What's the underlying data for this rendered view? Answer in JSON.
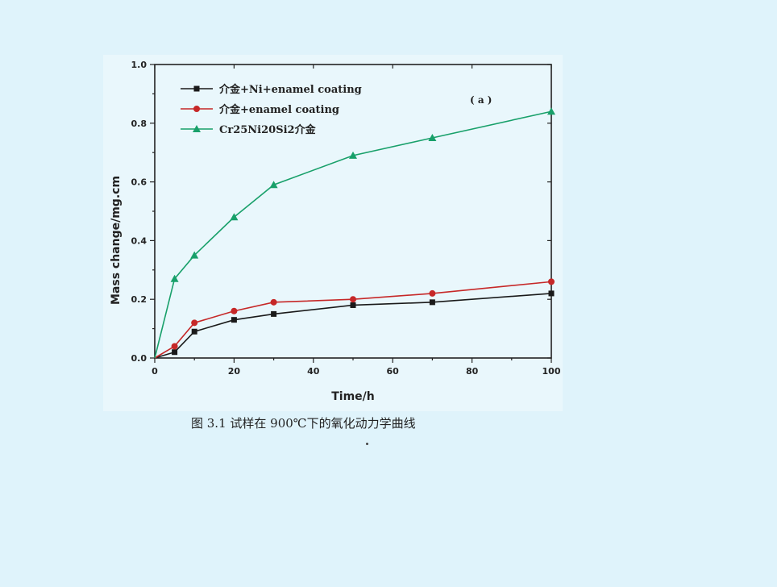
{
  "caption": "图 3.1  试样在 900℃下的氧化动力学曲线",
  "chart_data": {
    "type": "line",
    "panel_label": "( a )",
    "xlabel": "Time/h",
    "ylabel": "Mass change/mg.cm",
    "xlim": [
      0,
      100
    ],
    "ylim": [
      0.0,
      1.0
    ],
    "xticks": [
      0,
      20,
      40,
      60,
      80,
      100
    ],
    "xtick_labels": [
      "0",
      "20",
      "40",
      "60",
      "80",
      "100"
    ],
    "yticks": [
      0.0,
      0.2,
      0.4,
      0.6,
      0.8,
      1.0
    ],
    "ytick_labels": [
      "0.0",
      "0.2",
      "0.4",
      "0.6",
      "0.8",
      "1.0"
    ],
    "grid": false,
    "legend_position": "top-left",
    "series": [
      {
        "name": "介金+Ni+enamel coating",
        "color": "#1a1a1a",
        "marker": "square",
        "x": [
          0,
          5,
          10,
          20,
          30,
          50,
          70,
          100
        ],
        "y": [
          0.0,
          0.02,
          0.09,
          0.13,
          0.15,
          0.18,
          0.19,
          0.22
        ]
      },
      {
        "name": "介金+enamel coating",
        "color": "#c62828",
        "marker": "circle",
        "x": [
          0,
          5,
          10,
          20,
          30,
          50,
          70,
          100
        ],
        "y": [
          0.0,
          0.04,
          0.12,
          0.16,
          0.19,
          0.2,
          0.22,
          0.26
        ]
      },
      {
        "name": "Cr25Ni20Si2介金",
        "color": "#18a06a",
        "marker": "triangle",
        "x": [
          0,
          5,
          10,
          20,
          30,
          50,
          70,
          100
        ],
        "y": [
          0.0,
          0.27,
          0.35,
          0.48,
          0.59,
          0.69,
          0.75,
          0.84
        ]
      }
    ]
  }
}
